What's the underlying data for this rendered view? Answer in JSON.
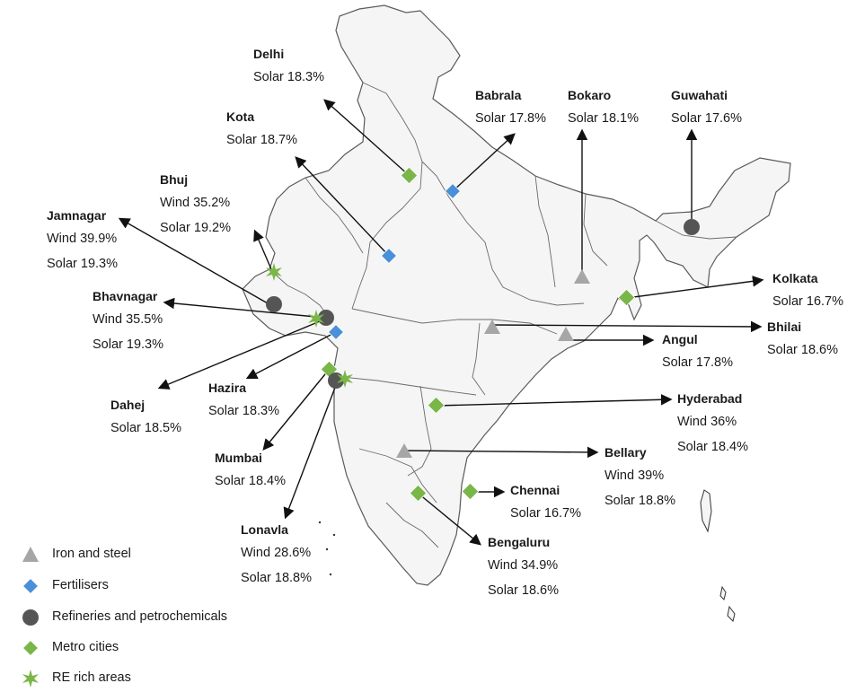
{
  "legend": {
    "iron_steel": "Iron and steel",
    "fertilisers": "Fertilisers",
    "refineries": "Refineries and petrochemicals",
    "metro": "Metro cities",
    "re_rich": "RE rich areas"
  },
  "colors": {
    "land_fill": "#f4f5f4",
    "border": "#5a5a5a",
    "iron_steel": "#a6a6a6",
    "fertilisers": "#4a90d9",
    "refineries": "#555555",
    "metro": "#7ab648",
    "re_rich": "#7ab648"
  },
  "places": {
    "delhi": {
      "name": "Delhi",
      "lines": [
        "Solar 18.3%"
      ],
      "type": "metro"
    },
    "babrala": {
      "name": "Babrala",
      "lines": [
        "Solar 17.8%"
      ],
      "type": "fertilisers"
    },
    "bokaro": {
      "name": "Bokaro",
      "lines": [
        "Solar 18.1%"
      ],
      "type": "iron_steel"
    },
    "guwahati": {
      "name": "Guwahati",
      "lines": [
        "Solar 17.6%"
      ],
      "type": "refineries"
    },
    "kota": {
      "name": "Kota",
      "lines": [
        "Solar 18.7%"
      ],
      "type": "fertilisers"
    },
    "bhuj": {
      "name": "Bhuj",
      "lines": [
        "Wind 35.2%",
        "Solar 19.2%"
      ],
      "type": "re_rich"
    },
    "jamnagar": {
      "name": "Jamnagar",
      "lines": [
        "Wind 39.9%",
        "Solar 19.3%"
      ],
      "type": "refineries"
    },
    "bhavnagar": {
      "name": "Bhavnagar",
      "lines": [
        "Wind 35.5%",
        "Solar 19.3%"
      ],
      "type": "re_rich"
    },
    "kolkata": {
      "name": "Kolkata",
      "lines": [
        "Solar 16.7%"
      ],
      "type": "metro"
    },
    "bhilai": {
      "name": "Bhilai",
      "lines": [
        "Solar 18.6%"
      ],
      "type": "iron_steel"
    },
    "angul": {
      "name": "Angul",
      "lines": [
        "Solar 17.8%"
      ],
      "type": "iron_steel"
    },
    "dahej": {
      "name": "Dahej",
      "lines": [
        "Solar 18.5%"
      ],
      "type": "refineries"
    },
    "hazira": {
      "name": "Hazira",
      "lines": [
        "Solar 18.3%"
      ],
      "type": "fertilisers"
    },
    "hyderabad": {
      "name": "Hyderabad",
      "lines": [
        "Wind 36%",
        "Solar 18.4%"
      ],
      "type": "metro"
    },
    "mumbai": {
      "name": "Mumbai",
      "lines": [
        "Solar 18.4%"
      ],
      "type": "metro"
    },
    "bellary": {
      "name": "Bellary",
      "lines": [
        "Wind 39%",
        "Solar 18.8%"
      ],
      "type": "iron_steel"
    },
    "chennai": {
      "name": "Chennai",
      "lines": [
        "Solar 16.7%"
      ],
      "type": "metro"
    },
    "lonavla": {
      "name": "Lonavla",
      "lines": [
        "Wind 28.6%",
        "Solar 18.8%"
      ],
      "type": "re_rich"
    },
    "bengaluru": {
      "name": "Bengaluru",
      "lines": [
        "Wind 34.9%",
        "Solar 18.6%"
      ],
      "type": "metro"
    }
  }
}
